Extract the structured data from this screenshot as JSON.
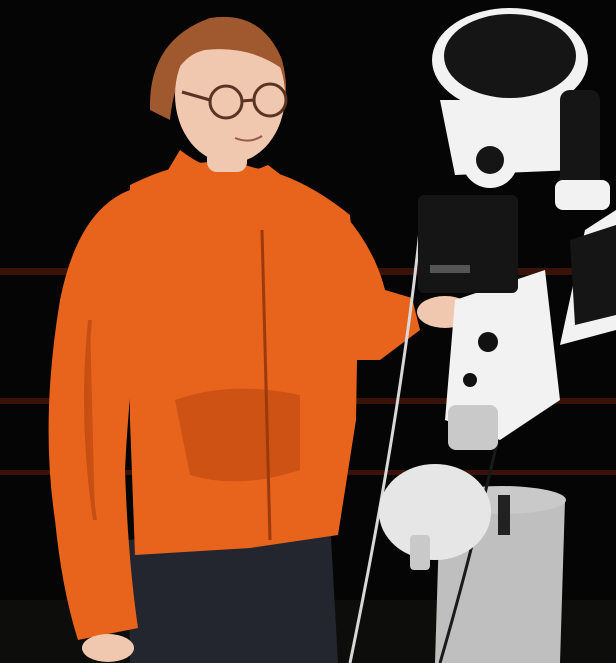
{
  "photo": {
    "subjects": [
      "person",
      "telescope"
    ],
    "colors": {
      "background": "#050505",
      "railing": "#3a1208",
      "jacket": "#e8641c",
      "jacket_shadow": "#b8440e",
      "skin": "#f0c8b0",
      "hair": "#a0582e",
      "pants": "#23262e",
      "telescope_white": "#f2f2f2",
      "telescope_shade": "#c9c9c9",
      "telescope_dark": "#151515",
      "pier": "#bfbfbf"
    }
  }
}
